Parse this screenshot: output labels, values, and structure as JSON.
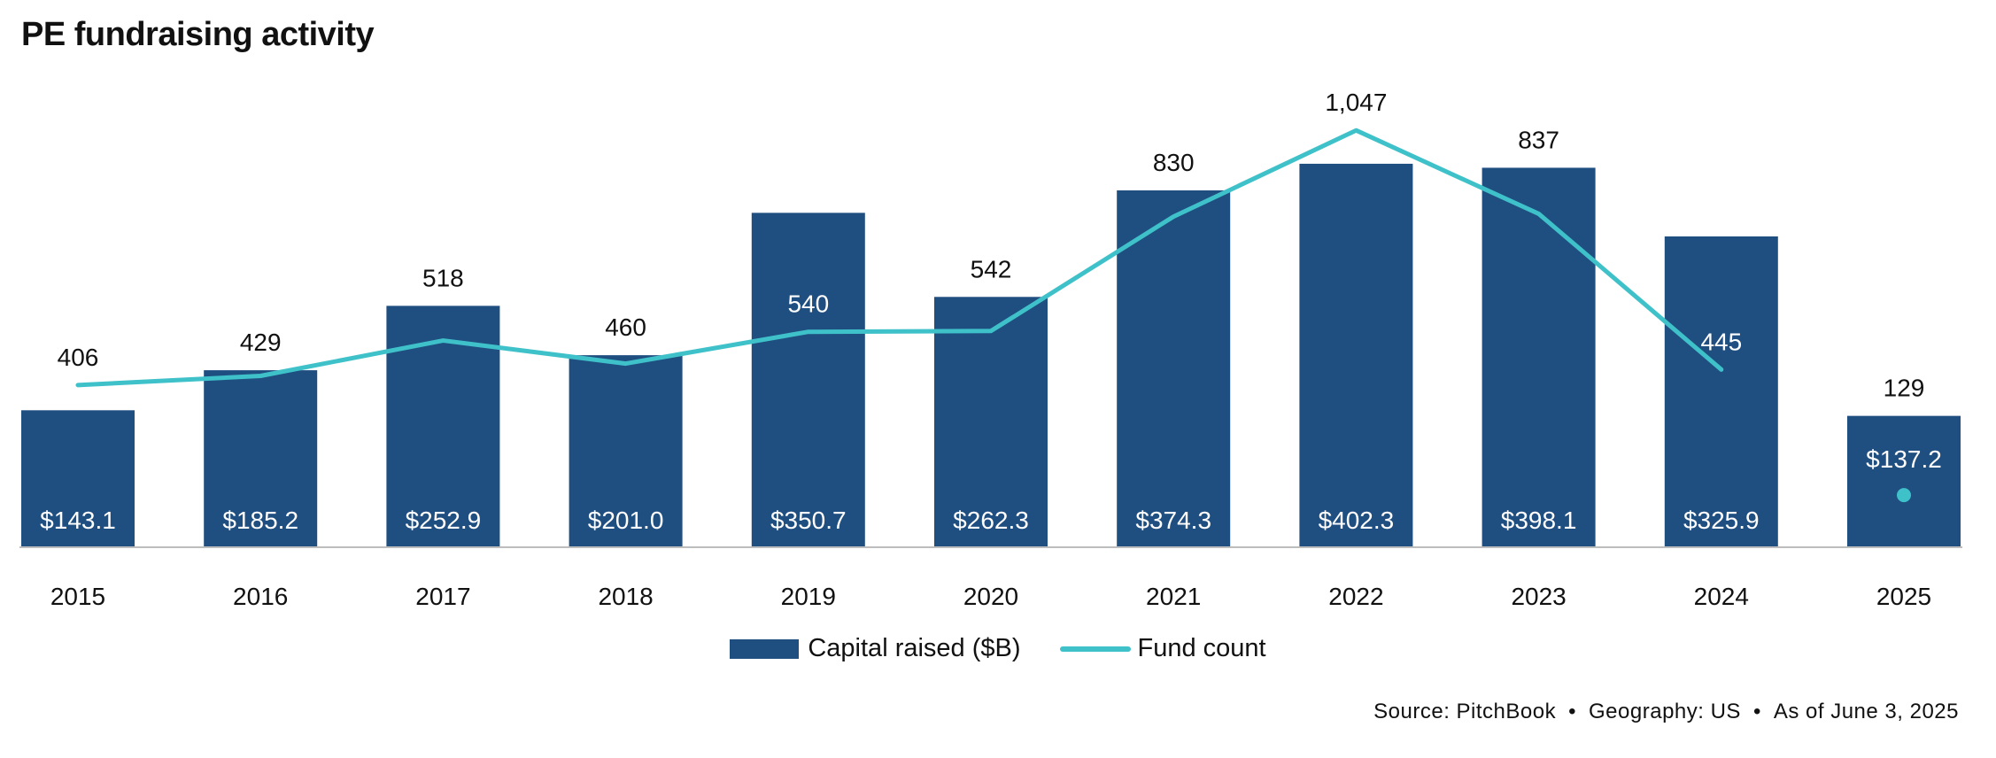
{
  "chart_data": {
    "type": "bar",
    "title": "PE fundraising activity",
    "categories": [
      "2015",
      "2016",
      "2017",
      "2018",
      "2019",
      "2020",
      "2021",
      "2022",
      "2023",
      "2024",
      "2025"
    ],
    "series": [
      {
        "name": "Capital raised ($B)",
        "type": "bar",
        "color": "#1f4e80",
        "values": [
          143.1,
          185.2,
          252.9,
          201.0,
          350.7,
          262.3,
          374.3,
          402.3,
          398.1,
          325.9,
          137.2
        ],
        "labels": [
          "$143.1",
          "$185.2",
          "$252.9",
          "$201.0",
          "$350.7",
          "$262.3",
          "$374.3",
          "$402.3",
          "$398.1",
          "$325.9",
          "$137.2"
        ]
      },
      {
        "name": "Fund count",
        "type": "line",
        "color": "#3fc1c9",
        "values": [
          406,
          429,
          518,
          460,
          540,
          542,
          830,
          1047,
          837,
          445,
          129
        ],
        "labels": [
          "406",
          "429",
          "518",
          "460",
          "540",
          "542",
          "830",
          "1,047",
          "837",
          "445",
          "129"
        ],
        "label_inside_bar": [
          false,
          false,
          false,
          false,
          true,
          false,
          false,
          false,
          false,
          true,
          false
        ],
        "standalone_point_last": true
      }
    ],
    "xlabel": "",
    "ylabel": "",
    "legend": "bottom-center",
    "grid": false
  },
  "legend": {
    "bar": "Capital raised ($B)",
    "line": "Fund count"
  },
  "source": {
    "source": "Source: PitchBook",
    "geography": "Geography: US",
    "date": "As of June 3, 2025",
    "sep": "•"
  }
}
